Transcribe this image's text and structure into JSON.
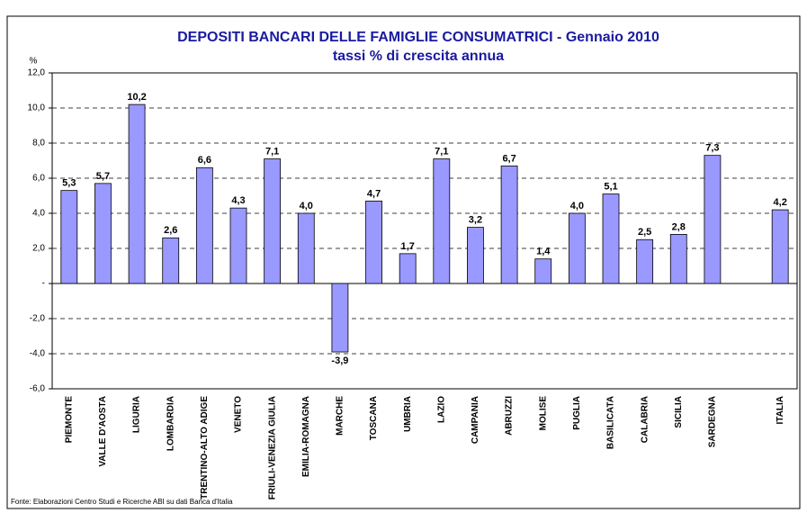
{
  "chart_data": {
    "type": "bar",
    "title": "DEPOSITI BANCARI DELLE FAMIGLIE CONSUMATRICI - Gennaio 2010",
    "subtitle": "tassi % di crescita annua",
    "y_label": "%",
    "note": "Fonte: Elaborazioni Centro Studi e Ricerche ABI su dati Banca d'Italia",
    "categories": [
      "PIEMONTE",
      "VALLE D'AOSTA",
      "LIGURIA",
      "LOMBARDIA",
      "TRENTINO-ALTO ADIGE",
      "VENETO",
      "FRIULI-VENEZIA GIULIA",
      "EMILIA-ROMAGNA",
      "MARCHE",
      "TOSCANA",
      "UMBRIA",
      "LAZIO",
      "CAMPANIA",
      "ABRUZZI",
      "MOLISE",
      "PUGLIA",
      "BASILICATA",
      "CALABRIA",
      "SICILIA",
      "SARDEGNA",
      null,
      "ITALIA"
    ],
    "values": [
      5.3,
      5.7,
      10.2,
      2.6,
      6.6,
      4.3,
      7.1,
      4.0,
      -3.9,
      4.7,
      1.7,
      7.1,
      3.2,
      6.7,
      1.4,
      4.0,
      5.1,
      2.5,
      2.8,
      7.3,
      null,
      4.2
    ],
    "value_labels": [
      "5,3",
      "5,7",
      "10,2",
      "2,6",
      "6,6",
      "4,3",
      "7,1",
      "4,0",
      "-3,9",
      "4,7",
      "1,7",
      "7,1",
      "3,2",
      "6,7",
      "1,4",
      "4,0",
      "5,1",
      "2,5",
      "2,8",
      "7,3",
      null,
      "4,2"
    ],
    "color": "#9999ff",
    "ylim": [
      -6,
      12
    ],
    "yticks": [
      {
        "value": -6,
        "label": "-6,0"
      },
      {
        "value": -4,
        "label": "-4,0"
      },
      {
        "value": -2,
        "label": "-2,0"
      },
      {
        "value": 0,
        "label": "-"
      },
      {
        "value": 2,
        "label": "2,0"
      },
      {
        "value": 4,
        "label": "4,0"
      },
      {
        "value": 6,
        "label": "6,0"
      },
      {
        "value": 8,
        "label": "8,0"
      },
      {
        "value": 10,
        "label": "10,0"
      },
      {
        "value": 12,
        "label": "12,0"
      }
    ],
    "grid": true
  }
}
